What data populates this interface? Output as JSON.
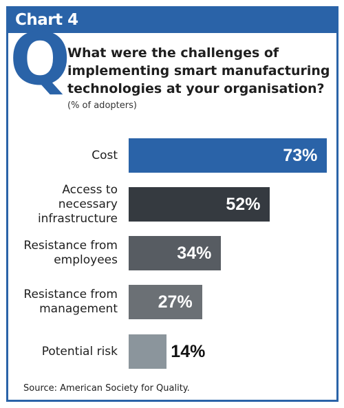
{
  "header": {
    "chart_label": "Chart 4",
    "q_letter": "Q",
    "question": "What were the challenges of implementing smart manufacturing technologies at your organisation?",
    "subtitle": "(% of adopters)"
  },
  "source": "Source: American Society for Quality.",
  "colors": {
    "brand_blue": "#2a63a8"
  },
  "chart_data": {
    "type": "bar",
    "orientation": "horizontal",
    "title": "What were the challenges of implementing smart manufacturing technologies at your organisation?",
    "subtitle": "(% of adopters)",
    "categories": [
      [
        "Cost"
      ],
      [
        "Access to",
        "necessary",
        "infrastructure"
      ],
      [
        "Resistance from",
        "employees"
      ],
      [
        "Resistance from",
        "management"
      ],
      [
        "Potential risk"
      ]
    ],
    "values": [
      73,
      52,
      34,
      27,
      14
    ],
    "value_labels": [
      "73%",
      "52%",
      "34%",
      "27%",
      "14%"
    ],
    "bar_colors": [
      "#2a63a8",
      "#353a40",
      "#575c62",
      "#6b7075",
      "#8b959c"
    ],
    "xlim": [
      0,
      100
    ],
    "grid": false,
    "legend": "none"
  }
}
